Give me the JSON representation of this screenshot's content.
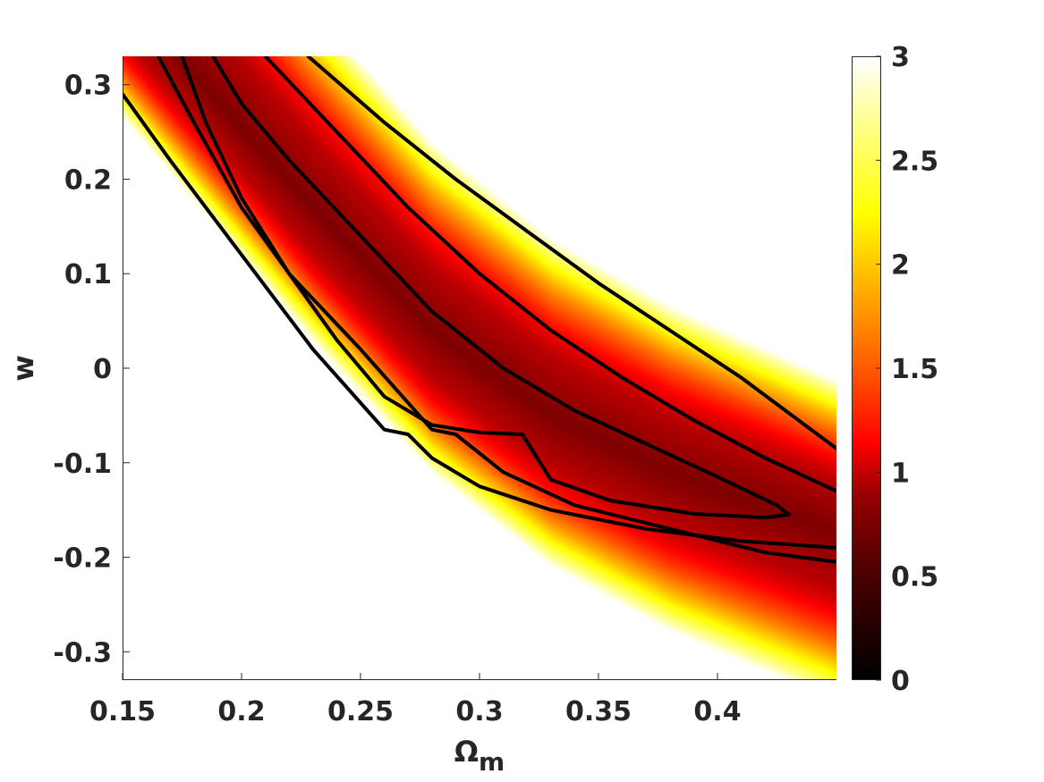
{
  "chart_data": {
    "type": "heatmap",
    "title": "",
    "xlabel": "Ω",
    "xlabel_subscript": "m",
    "ylabel": "w",
    "xlim": [
      0.15,
      0.45
    ],
    "ylim": [
      -0.33,
      0.33
    ],
    "xticks": [
      "0.15",
      "0.2",
      "0.25",
      "0.3",
      "0.35",
      "0.4"
    ],
    "yticks": [
      "0.3",
      "0.2",
      "0.1",
      "0",
      "-0.1",
      "-0.2",
      "-0.3"
    ],
    "colorbar": {
      "range": [
        0,
        3
      ],
      "ticks": [
        "3",
        "2.5",
        "2",
        "1.5",
        "1",
        "0.5",
        "0"
      ],
      "colormap": "hot",
      "colors": [
        "#000000",
        "#ff0000",
        "#ffff00",
        "#ffffff"
      ]
    },
    "valley_ridge": [
      {
        "x": 0.18,
        "y": 0.31
      },
      {
        "x": 0.23,
        "y": 0.17
      },
      {
        "x": 0.28,
        "y": 0.04
      },
      {
        "x": 0.33,
        "y": -0.05
      },
      {
        "x": 0.38,
        "y": -0.11
      },
      {
        "x": 0.43,
        "y": -0.155
      }
    ],
    "contours": [
      {
        "points": [
          [
            0.188,
            0.33
          ],
          [
            0.2,
            0.28
          ],
          [
            0.22,
            0.22
          ],
          [
            0.25,
            0.14
          ],
          [
            0.28,
            0.06
          ],
          [
            0.31,
            0.0
          ],
          [
            0.34,
            -0.045
          ],
          [
            0.37,
            -0.08
          ],
          [
            0.4,
            -0.115
          ],
          [
            0.425,
            -0.145
          ],
          [
            0.43,
            -0.155
          ],
          [
            0.42,
            -0.158
          ],
          [
            0.39,
            -0.154
          ],
          [
            0.355,
            -0.14
          ],
          [
            0.33,
            -0.118
          ],
          [
            0.318,
            -0.07
          ],
          [
            0.3,
            -0.068
          ],
          [
            0.28,
            -0.06
          ],
          [
            0.26,
            -0.03
          ],
          [
            0.24,
            0.03
          ],
          [
            0.22,
            0.1
          ],
          [
            0.2,
            0.18
          ],
          [
            0.185,
            0.26
          ],
          [
            0.175,
            0.33
          ]
        ]
      },
      {
        "points": [
          [
            0.21,
            0.33
          ],
          [
            0.24,
            0.25
          ],
          [
            0.27,
            0.17
          ],
          [
            0.3,
            0.1
          ],
          [
            0.33,
            0.04
          ],
          [
            0.36,
            -0.01
          ],
          [
            0.39,
            -0.055
          ],
          [
            0.42,
            -0.095
          ],
          [
            0.45,
            -0.13
          ]
        ]
      },
      {
        "points": [
          [
            0.15,
            0.29
          ],
          [
            0.17,
            0.22
          ],
          [
            0.2,
            0.12
          ],
          [
            0.23,
            0.02
          ],
          [
            0.26,
            -0.065
          ],
          [
            0.27,
            -0.07
          ],
          [
            0.28,
            -0.095
          ],
          [
            0.3,
            -0.125
          ],
          [
            0.33,
            -0.15
          ],
          [
            0.37,
            -0.17
          ],
          [
            0.41,
            -0.183
          ],
          [
            0.45,
            -0.19
          ]
        ]
      },
      {
        "points": [
          [
            0.228,
            0.33
          ],
          [
            0.26,
            0.26
          ],
          [
            0.29,
            0.2
          ],
          [
            0.32,
            0.145
          ],
          [
            0.35,
            0.09
          ],
          [
            0.38,
            0.04
          ],
          [
            0.41,
            -0.01
          ],
          [
            0.45,
            -0.085
          ]
        ]
      },
      {
        "points": [
          [
            0.165,
            0.33
          ],
          [
            0.18,
            0.26
          ],
          [
            0.2,
            0.17
          ],
          [
            0.22,
            0.1
          ],
          [
            0.25,
            0.02
          ],
          [
            0.28,
            -0.065
          ],
          [
            0.29,
            -0.07
          ],
          [
            0.31,
            -0.11
          ],
          [
            0.34,
            -0.145
          ],
          [
            0.38,
            -0.17
          ],
          [
            0.42,
            -0.195
          ],
          [
            0.45,
            -0.205
          ]
        ]
      }
    ]
  }
}
